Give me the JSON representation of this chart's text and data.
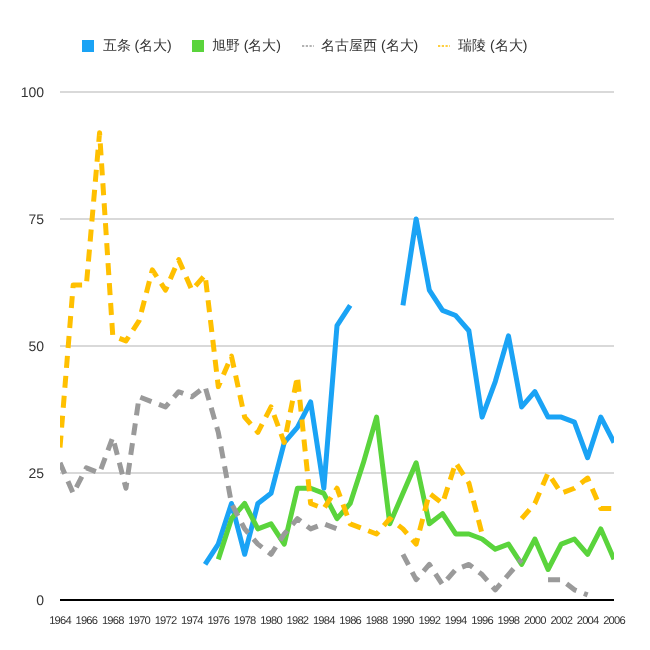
{
  "chart_data": {
    "type": "line",
    "x": [
      1964,
      1965,
      1966,
      1967,
      1968,
      1969,
      1970,
      1971,
      1972,
      1973,
      1974,
      1975,
      1976,
      1977,
      1978,
      1979,
      1980,
      1981,
      1982,
      1983,
      1984,
      1985,
      1986,
      1987,
      1988,
      1989,
      1990,
      1991,
      1992,
      1993,
      1994,
      1995,
      1996,
      1997,
      1998,
      1999,
      2000,
      2001,
      2002,
      2003,
      2004,
      2005,
      2006
    ],
    "series": [
      {
        "name": "五条 (名大)",
        "color": "#1aa3f5",
        "line_style": "solid",
        "values": [
          null,
          null,
          null,
          null,
          null,
          null,
          null,
          null,
          null,
          null,
          null,
          7,
          11,
          19,
          9,
          19,
          21,
          31,
          34,
          39,
          22,
          54,
          58,
          null,
          null,
          null,
          58,
          75,
          61,
          57,
          56,
          53,
          36,
          43,
          52,
          38,
          41,
          36,
          36,
          35,
          28,
          36,
          31
        ]
      },
      {
        "name": "旭野 (名大)",
        "color": "#5ad43c",
        "line_style": "solid",
        "values": [
          null,
          null,
          null,
          null,
          null,
          null,
          null,
          null,
          null,
          null,
          null,
          null,
          8,
          16,
          19,
          14,
          15,
          11,
          22,
          22,
          21,
          16,
          19,
          27,
          36,
          15,
          21,
          27,
          15,
          17,
          13,
          13,
          12,
          10,
          11,
          7,
          12,
          6,
          11,
          12,
          9,
          14,
          8
        ]
      },
      {
        "name": "名古屋西 (名大)",
        "color": "#9a9a9a",
        "line_style": "dashed",
        "values": [
          27,
          21,
          26,
          25,
          32,
          22,
          40,
          39,
          38,
          41,
          40,
          42,
          33,
          19,
          14,
          11,
          9,
          13,
          16,
          14,
          15,
          14,
          null,
          null,
          null,
          null,
          9,
          4,
          7,
          3,
          6,
          7,
          5,
          2,
          5,
          8,
          null,
          4,
          4,
          2,
          1,
          null,
          null
        ]
      },
      {
        "name": "瑞陵 (名大)",
        "color": "#ffc000",
        "line_style": "dashed",
        "values": [
          30,
          62,
          62,
          92,
          52,
          51,
          55,
          65,
          61,
          67,
          61,
          64,
          42,
          48,
          36,
          33,
          38,
          31,
          44,
          19,
          18,
          22,
          15,
          14,
          13,
          16,
          14,
          11,
          21,
          19,
          27,
          23,
          13,
          null,
          null,
          16,
          19,
          25,
          21,
          22,
          24,
          18,
          18
        ]
      }
    ],
    "xlim": [
      1964,
      2006
    ],
    "xticks": [
      1964,
      1966,
      1968,
      1970,
      1972,
      1974,
      1976,
      1978,
      1980,
      1982,
      1984,
      1986,
      1988,
      1990,
      1992,
      1994,
      1996,
      1998,
      2000,
      2002,
      2004,
      2006
    ],
    "ylim": [
      0,
      100
    ],
    "yticks": [
      0,
      25,
      50,
      75,
      100
    ],
    "grid": "y",
    "legend": "top",
    "marker": "none"
  }
}
